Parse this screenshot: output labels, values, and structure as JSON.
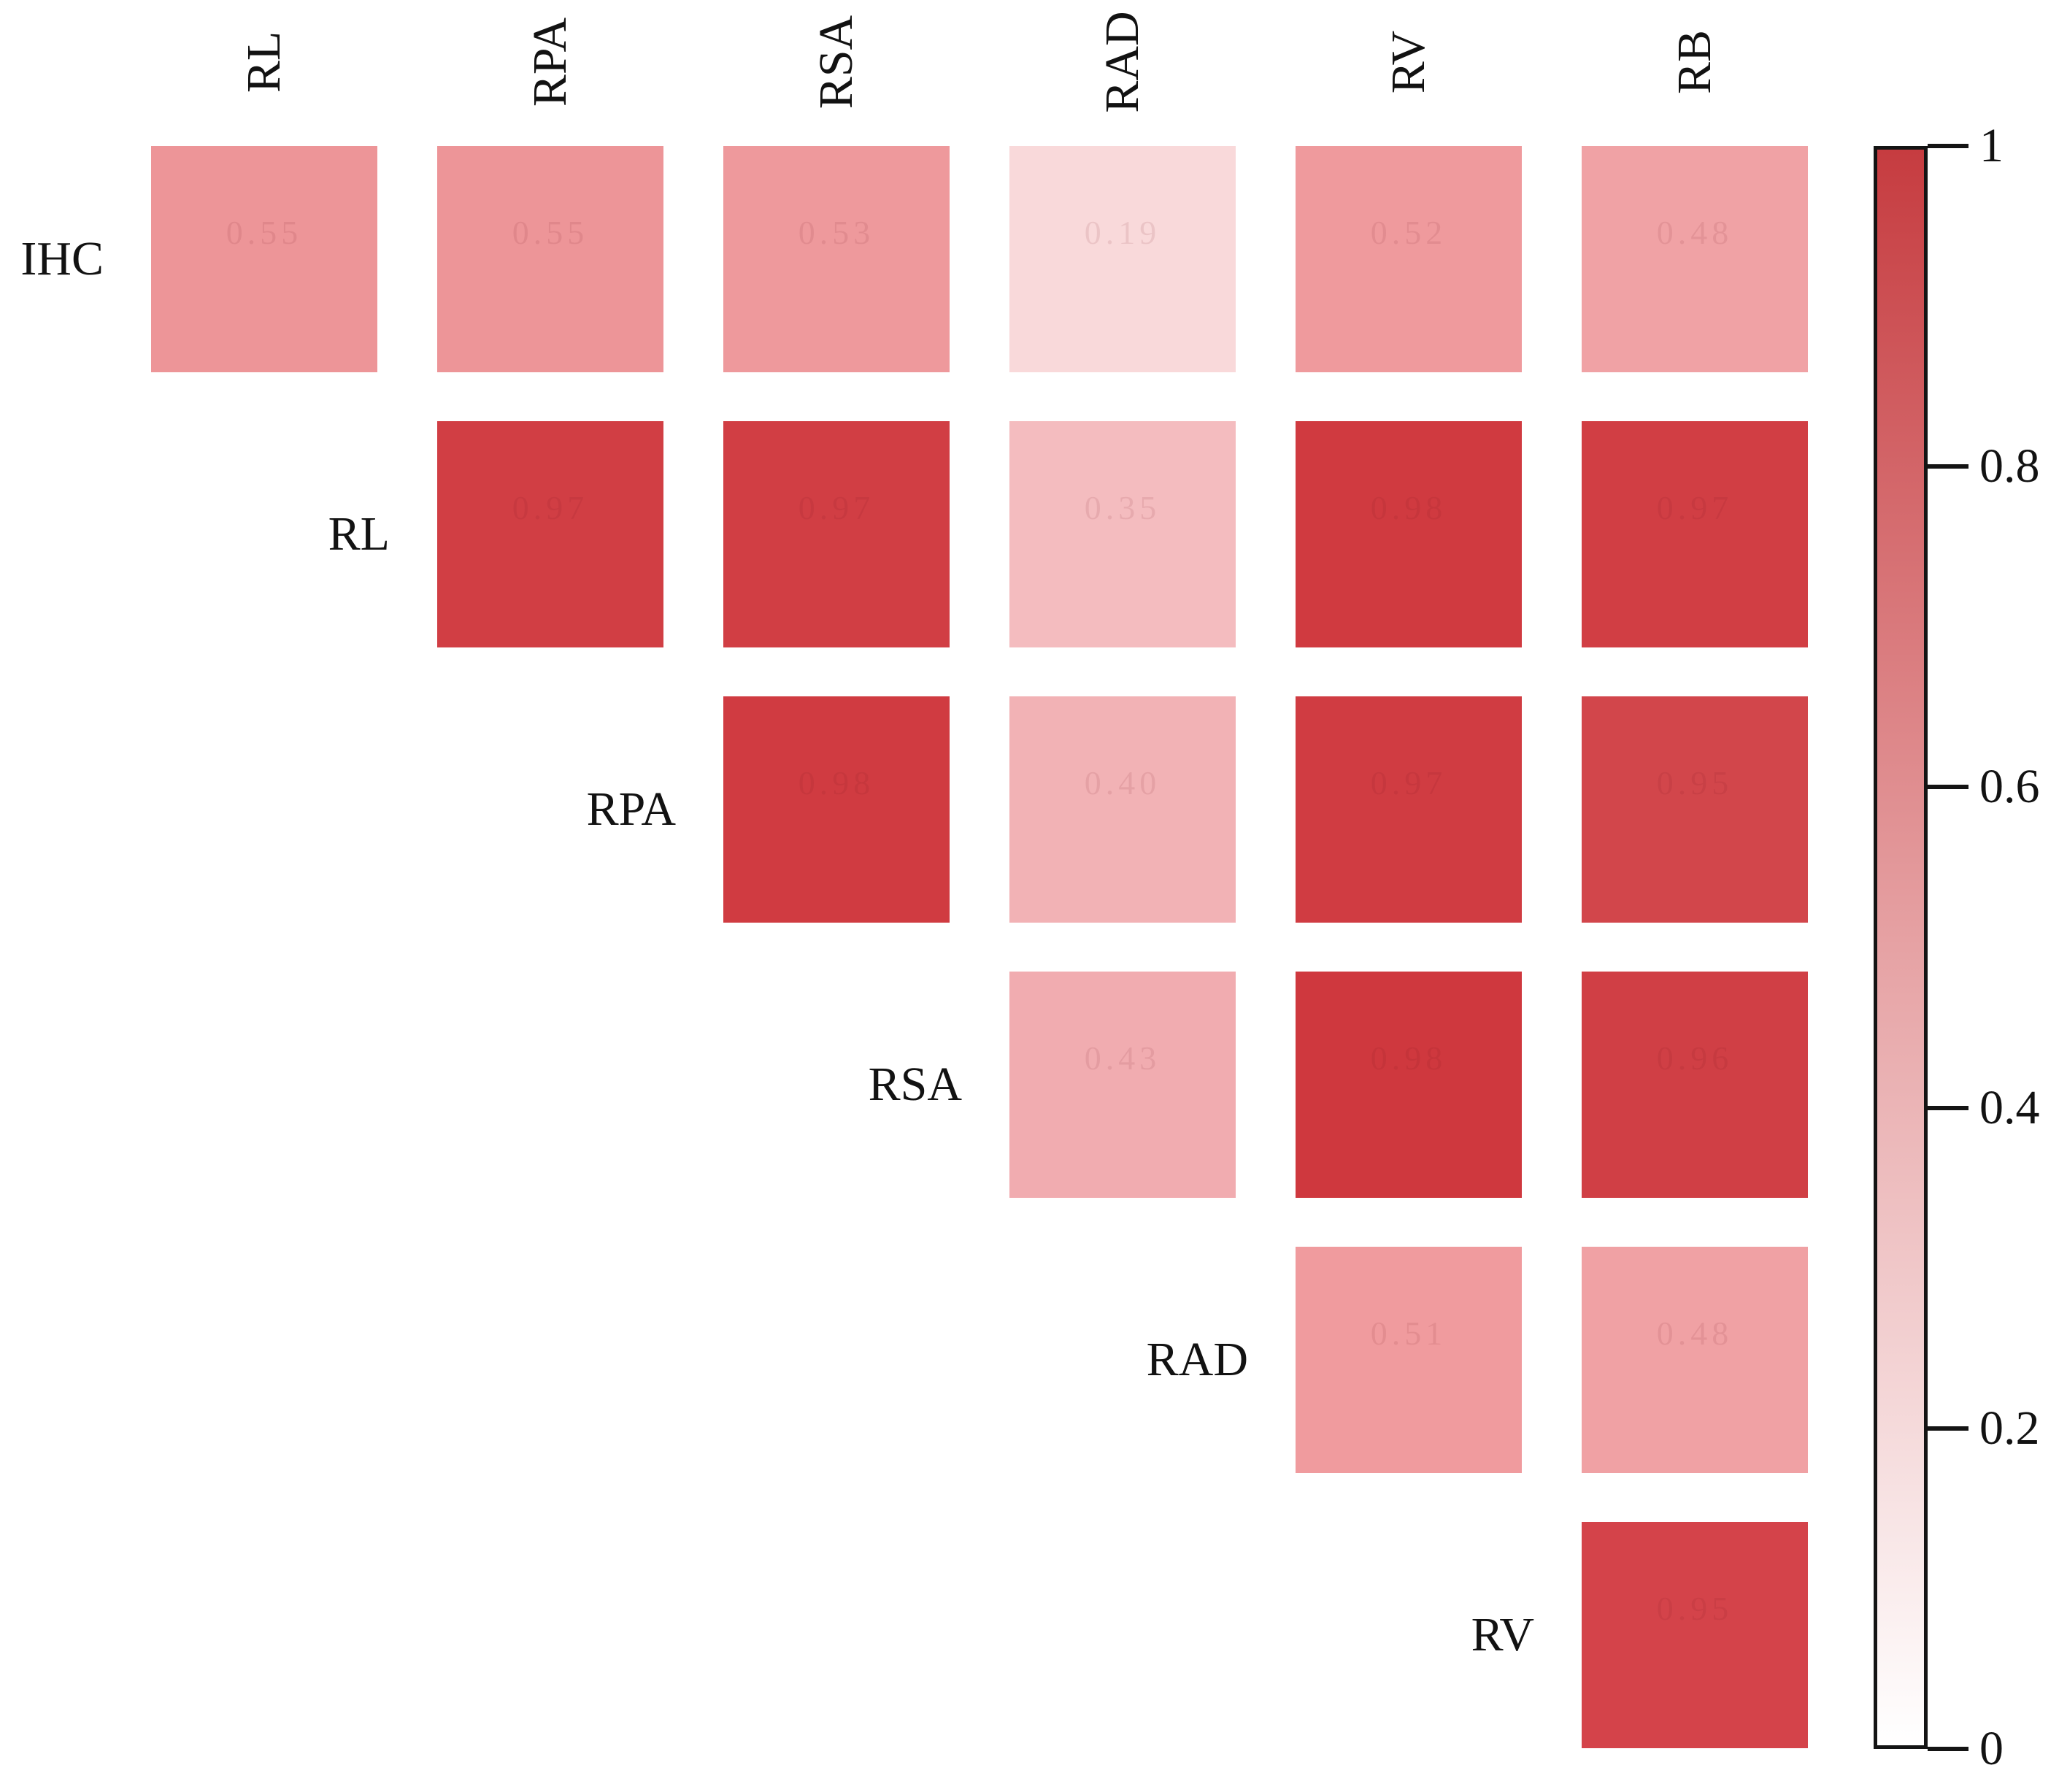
{
  "figure": {
    "background": "#ffffff",
    "kind": "correlation-matrix-heatmap"
  },
  "chart_data": {
    "type": "heatmap",
    "layout": "upper-triangle",
    "variables": [
      "IHC",
      "RL",
      "RPA",
      "RSA",
      "RAD",
      "RV",
      "RB"
    ],
    "col_labels": [
      "RL",
      "RPA",
      "RSA",
      "RAD",
      "RV",
      "RB"
    ],
    "row_labels": [
      "IHC",
      "RL",
      "RPA",
      "RSA",
      "RAD",
      "RV"
    ],
    "value_range": [
      0,
      1
    ],
    "values_estimated_from_color": true,
    "colormap": {
      "low": "#ffffff",
      "high": "#c63c40"
    },
    "cells": [
      {
        "row": "IHC",
        "col": "RL",
        "value": "0.55",
        "color": "#ED9598"
      },
      {
        "row": "IHC",
        "col": "RPA",
        "value": "0.55",
        "color": "#ED9598"
      },
      {
        "row": "IHC",
        "col": "RSA",
        "value": "0.53",
        "color": "#EE999C"
      },
      {
        "row": "IHC",
        "col": "RAD",
        "value": "0.19",
        "color": "#F9D9DA"
      },
      {
        "row": "IHC",
        "col": "RV",
        "value": "0.52",
        "color": "#EF9A9D"
      },
      {
        "row": "IHC",
        "col": "RB",
        "value": "0.48",
        "color": "#F0A2A5"
      },
      {
        "row": "RL",
        "col": "RPA",
        "value": "0.97",
        "color": "#D13E44"
      },
      {
        "row": "RL",
        "col": "RSA",
        "value": "0.97",
        "color": "#D13E44"
      },
      {
        "row": "RL",
        "col": "RAD",
        "value": "0.35",
        "color": "#F4BCBF"
      },
      {
        "row": "RL",
        "col": "RV",
        "value": "0.98",
        "color": "#D03A40"
      },
      {
        "row": "RL",
        "col": "RB",
        "value": "0.97",
        "color": "#D13E44"
      },
      {
        "row": "RPA",
        "col": "RSA",
        "value": "0.98",
        "color": "#D03B41"
      },
      {
        "row": "RPA",
        "col": "RAD",
        "value": "0.40",
        "color": "#F2B2B5"
      },
      {
        "row": "RPA",
        "col": "RV",
        "value": "0.97",
        "color": "#D03C42"
      },
      {
        "row": "RPA",
        "col": "RB",
        "value": "0.95",
        "color": "#D2464B"
      },
      {
        "row": "RSA",
        "col": "RAD",
        "value": "0.43",
        "color": "#F1ACB0"
      },
      {
        "row": "RSA",
        "col": "RV",
        "value": "0.98",
        "color": "#CF383E"
      },
      {
        "row": "RSA",
        "col": "RB",
        "value": "0.96",
        "color": "#D03F45"
      },
      {
        "row": "RAD",
        "col": "RV",
        "value": "0.51",
        "color": "#F09B9E"
      },
      {
        "row": "RAD",
        "col": "RB",
        "value": "0.48",
        "color": "#F0A1A4"
      },
      {
        "row": "RV",
        "col": "RB",
        "value": "0.95",
        "color": "#D4434A"
      }
    ],
    "colorbar": {
      "position": "right",
      "min": 0,
      "max": 1,
      "tick_labels": [
        "1",
        "0.8",
        "0.6",
        "0.4",
        "0.2",
        "0"
      ],
      "border_color": "#141414",
      "top_color": "#c63c40",
      "bottom_color": "#ffffff"
    }
  }
}
